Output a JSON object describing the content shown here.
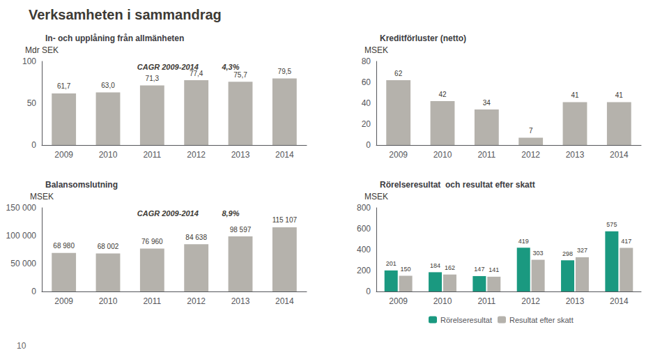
{
  "title": "Verksamheten i sammandrag",
  "annotations": [
    "10"
  ],
  "chart_data": [
    {
      "type": "bar",
      "title": "In- och upplåning från allmänheten",
      "ylabel": "Mdr SEK",
      "categories": [
        "2009",
        "2010",
        "2011",
        "2012",
        "2013",
        "2014"
      ],
      "values": [
        61.7,
        63.0,
        71.3,
        77.4,
        75.7,
        79.5
      ],
      "value_labels": [
        "61,7",
        "63,0",
        "71,3",
        "77,4",
        "75,7",
        "79,5"
      ],
      "color": "#b5b2ac",
      "ylim": [
        0,
        100
      ],
      "yticks": [
        0,
        50,
        100
      ],
      "annotations": [
        "CAGR 2009-2014",
        "4,3%"
      ],
      "grid": false,
      "data_labels": true
    },
    {
      "type": "bar",
      "title": "Kreditförluster (netto)",
      "ylabel": "MSEK",
      "categories": [
        "2009",
        "2010",
        "2011",
        "2012",
        "2013",
        "2014"
      ],
      "values": [
        62,
        42,
        34,
        7,
        41,
        41
      ],
      "color": "#b5b2ac",
      "ylim": [
        0,
        80
      ],
      "yticks": [
        0,
        20,
        40,
        60,
        80
      ],
      "grid": false,
      "data_labels": true
    },
    {
      "type": "bar",
      "title": "Balansomslutning",
      "ylabel": "MSEK",
      "categories": [
        "2009",
        "2010",
        "2011",
        "2012",
        "2013",
        "2014"
      ],
      "values": [
        68980,
        68002,
        76960,
        84638,
        98597,
        115107
      ],
      "value_labels": [
        "68 980",
        "68 002",
        "76 960",
        "84 638",
        "98 597",
        "115 107"
      ],
      "color": "#b5b2ac",
      "ylim": [
        0,
        150000
      ],
      "yticks": [
        0,
        {
          "value": 50000,
          "label": "50 000"
        },
        {
          "value": 100000,
          "label": "100 000"
        },
        {
          "value": 150000,
          "label": "150 000"
        }
      ],
      "annotations": [
        "CAGR 2009-2014",
        "8,9%"
      ],
      "grid": false,
      "data_labels": true
    },
    {
      "type": "bar",
      "title": "Rörelseresultat  och resultat efter skatt",
      "ylabel": "MSEK",
      "categories": [
        "2009",
        "2010",
        "2011",
        "2012",
        "2013",
        "2014"
      ],
      "series": [
        {
          "name": "Rörelseresultat",
          "color": "#1a9980",
          "values": [
            201,
            184,
            147,
            419,
            298,
            575
          ]
        },
        {
          "name": "Resultat efter skatt",
          "color": "#b5b2ac",
          "values": [
            150,
            162,
            141,
            303,
            327,
            417
          ]
        }
      ],
      "ylim": [
        0,
        800
      ],
      "yticks": [
        0,
        200,
        400,
        600,
        800
      ],
      "legend": "bottom",
      "grid": false,
      "data_labels": true
    }
  ]
}
